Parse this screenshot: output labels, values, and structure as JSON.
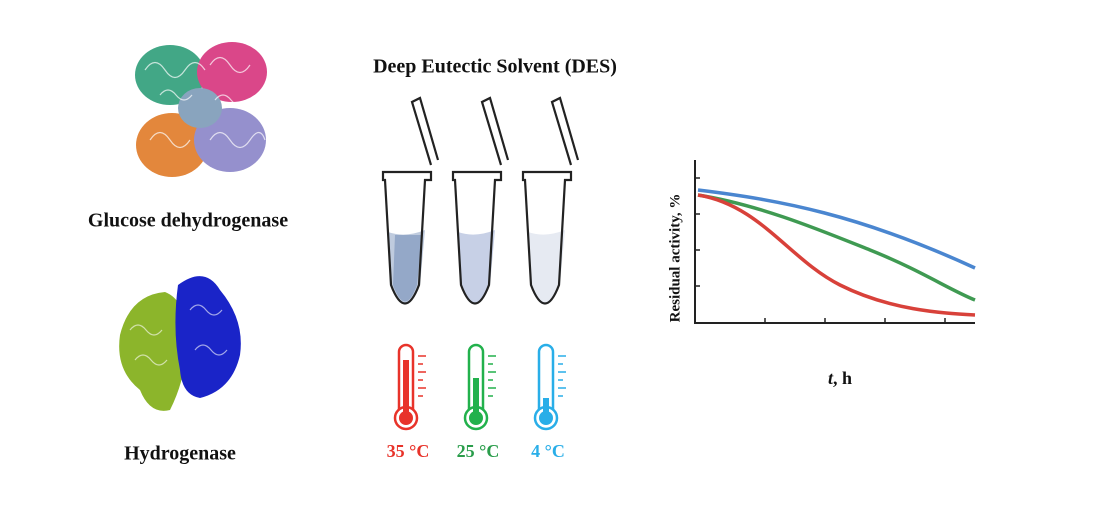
{
  "title": "Deep Eutectic Solvent (DES)",
  "enzymes": [
    {
      "label": "Glucose dehydrogenase"
    },
    {
      "label": "Hydrogenase"
    }
  ],
  "temperatures": [
    {
      "label": "35 °C",
      "color": "#e8332a"
    },
    {
      "label": "25 °C",
      "color": "#2a9d4b"
    },
    {
      "label": "4 °C",
      "color": "#29aee8"
    }
  ],
  "plot": {
    "y_label": "Residual activity, %",
    "x_label_var": "t",
    "x_label_unit": ", h"
  }
}
